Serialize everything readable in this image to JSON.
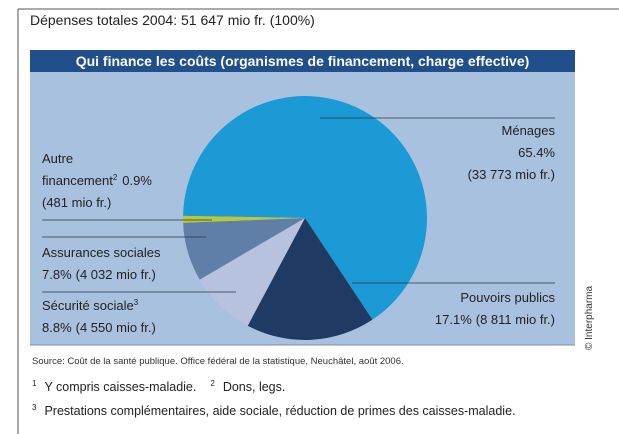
{
  "chart_data": {
    "type": "pie",
    "title": "Dépenses totales 2004: 51 647 mio fr. (100%)",
    "subtitle": "Qui finance les coûts (organismes de financement, charge effective)",
    "categories": [
      "Ménages",
      "Pouvoirs publics",
      "Sécurité sociale",
      "Assurances sociales",
      "Autre financement"
    ],
    "category_notes": [
      null,
      null,
      "3",
      null,
      "2"
    ],
    "values": [
      65.4,
      17.1,
      8.8,
      7.8,
      0.9
    ],
    "value_labels": [
      "65.4%",
      "17.1%",
      "8.8%",
      "7.8%",
      "0.9%"
    ],
    "amounts": [
      33773,
      8811,
      4550,
      4032,
      481
    ],
    "amount_labels": [
      "(33 773 mio fr.)",
      "(8 811 mio fr.)",
      "(4 550 mio fr.)",
      "(4 032 mio fr.)",
      "(481 mio fr.)"
    ],
    "colors": [
      "#1c9ad6",
      "#1f3a63",
      "#b7c2de",
      "#5f7fa8",
      "#b9c934"
    ],
    "source": "Source: Coût de la santé publique. Office fédéral de la statistique, Neuchâtel, août 2006.",
    "credit": "© Interpharma",
    "footnotes": [
      {
        "mark": "1",
        "text": "Y compris caisses-maladie."
      },
      {
        "mark": "2",
        "text": "Dons, legs."
      },
      {
        "mark": "3",
        "text": "Prestations complémentaires, aide sociale, réduction de primes des caisses-maladie."
      }
    ]
  }
}
